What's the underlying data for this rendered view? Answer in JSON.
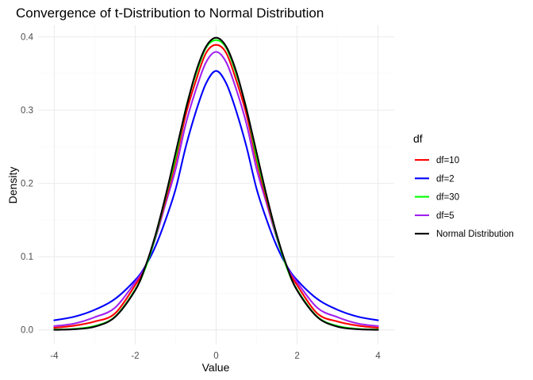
{
  "chart_data": {
    "type": "line",
    "title": "Convergence of t-Distribution to Normal Distribution",
    "xlabel": "Value",
    "ylabel": "Density",
    "xlim": [
      -4,
      4
    ],
    "ylim": [
      0,
      0.4
    ],
    "x_ticks": [
      -4,
      -2,
      0,
      2,
      4
    ],
    "y_ticks": [
      0.0,
      0.1,
      0.2,
      0.3,
      0.4
    ],
    "x_tick_labels": [
      "-4",
      "-2",
      "0",
      "2",
      "4"
    ],
    "y_tick_labels": [
      "0.0",
      "0.1",
      "0.2",
      "0.3",
      "0.4"
    ],
    "grid": true,
    "legend": {
      "title": "df",
      "position": "right"
    },
    "x": [
      -4,
      -3.5,
      -3,
      -2.5,
      -2,
      -1.75,
      -1.5,
      -1.25,
      -1,
      -0.75,
      -0.5,
      -0.25,
      0,
      0.25,
      0.5,
      0.75,
      1,
      1.25,
      1.5,
      1.75,
      2,
      2.5,
      3,
      3.5,
      4
    ],
    "series": [
      {
        "name": "df=10",
        "color": "#ff0000",
        "values": [
          0.0028,
          0.0058,
          0.0114,
          0.0224,
          0.0611,
          0.0848,
          0.1274,
          0.1769,
          0.2304,
          0.2939,
          0.3403,
          0.378,
          0.3891,
          0.378,
          0.3403,
          0.2939,
          0.2304,
          0.1769,
          0.1274,
          0.0848,
          0.0611,
          0.0224,
          0.0114,
          0.0058,
          0.0028
        ]
      },
      {
        "name": "df=2",
        "color": "#0000ff",
        "values": [
          0.0131,
          0.018,
          0.0274,
          0.0422,
          0.068,
          0.087,
          0.114,
          0.15,
          0.1925,
          0.25,
          0.2981,
          0.3365,
          0.3536,
          0.3365,
          0.2981,
          0.25,
          0.1925,
          0.15,
          0.114,
          0.087,
          0.068,
          0.0422,
          0.0274,
          0.018,
          0.0131
        ]
      },
      {
        "name": "df=30",
        "color": "#00ff00",
        "values": [
          0.0005,
          0.0014,
          0.0053,
          0.018,
          0.055,
          0.0844,
          0.1273,
          0.1812,
          0.236,
          0.3021,
          0.3493,
          0.3851,
          0.3956,
          0.3851,
          0.3493,
          0.3021,
          0.236,
          0.1812,
          0.1273,
          0.0844,
          0.055,
          0.018,
          0.0053,
          0.0014,
          0.0005
        ]
      },
      {
        "name": "df=5",
        "color": "#a020f0",
        "values": [
          0.0051,
          0.0087,
          0.0173,
          0.0302,
          0.0651,
          0.0865,
          0.125,
          0.1722,
          0.2197,
          0.2812,
          0.3279,
          0.3653,
          0.3796,
          0.3653,
          0.3279,
          0.2812,
          0.2197,
          0.1722,
          0.125,
          0.0865,
          0.0651,
          0.0302,
          0.0173,
          0.0087,
          0.0051
        ]
      },
      {
        "name": "Normal Distribution",
        "color": "#000000",
        "values": [
          0.0001,
          0.0009,
          0.0044,
          0.0175,
          0.054,
          0.0863,
          0.1295,
          0.1826,
          0.242,
          0.3011,
          0.3521,
          0.3867,
          0.3989,
          0.3867,
          0.3521,
          0.3011,
          0.242,
          0.1826,
          0.1295,
          0.0863,
          0.054,
          0.0175,
          0.0044,
          0.0009,
          0.0001
        ]
      }
    ]
  }
}
